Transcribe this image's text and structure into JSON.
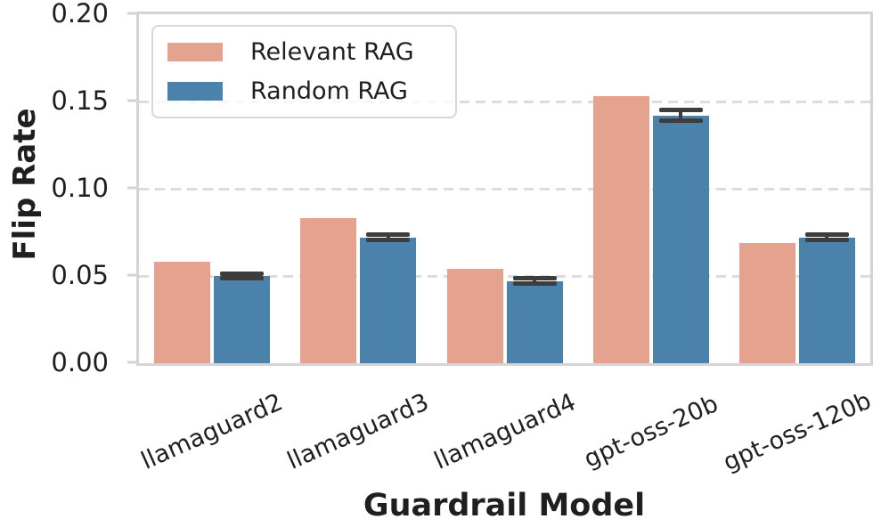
{
  "chart_data": {
    "type": "bar",
    "title": "",
    "xlabel": "Guardrail Model",
    "ylabel": "Flip Rate",
    "categories": [
      "llamaguard2",
      "llamaguard3",
      "llamaguard4",
      "gpt-oss-20b",
      "gpt-oss-120b"
    ],
    "series": [
      {
        "name": "Relevant RAG",
        "color": "#e5a38f",
        "values": [
          0.058,
          0.083,
          0.054,
          0.153,
          0.069
        ],
        "errors": [
          0,
          0,
          0,
          0,
          0
        ]
      },
      {
        "name": "Random RAG",
        "color": "#4b82ac",
        "values": [
          0.05,
          0.072,
          0.047,
          0.142,
          0.072
        ],
        "errors": [
          0.0015,
          0.0015,
          0.0015,
          0.003,
          0.0015
        ]
      }
    ],
    "ylim": [
      0,
      0.2
    ],
    "ytick_labels": [
      "0.00",
      "0.05",
      "0.10",
      "0.15",
      "0.20"
    ],
    "ytick_values": [
      0,
      0.05,
      0.1,
      0.15,
      0.2
    ],
    "grid": "horizontal-dashed",
    "legend_position": "upper-left",
    "error_bar_color": "#3d3d3d",
    "spine_color": "#d4d4d4",
    "grid_color": "#dcdcdc",
    "text_color": "#1f1f1f",
    "xtick_rotation_deg": 24
  }
}
